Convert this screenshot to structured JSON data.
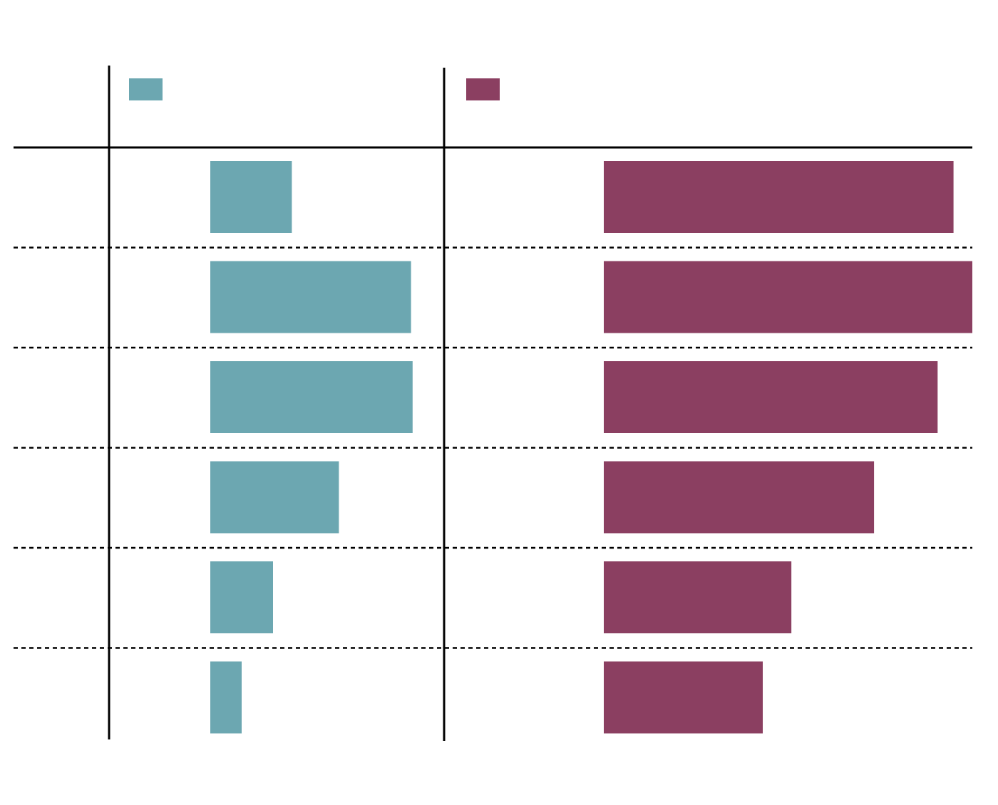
{
  "chart_data": [
    {
      "type": "bar",
      "orientation": "horizontal",
      "series": [
        {
          "values": [
            2.6,
            6.4,
            6.45,
            4.1,
            2.0,
            1.0
          ]
        }
      ],
      "color": "#6ca7b1",
      "legend": "top-left",
      "grid": false
    },
    {
      "type": "bar",
      "orientation": "horizontal",
      "series": [
        {
          "values": [
            11.0,
            11.6,
            10.5,
            8.5,
            5.9,
            5.0
          ]
        }
      ],
      "color": "#8b3f61",
      "legend": "top-left",
      "grid": false
    }
  ]
}
